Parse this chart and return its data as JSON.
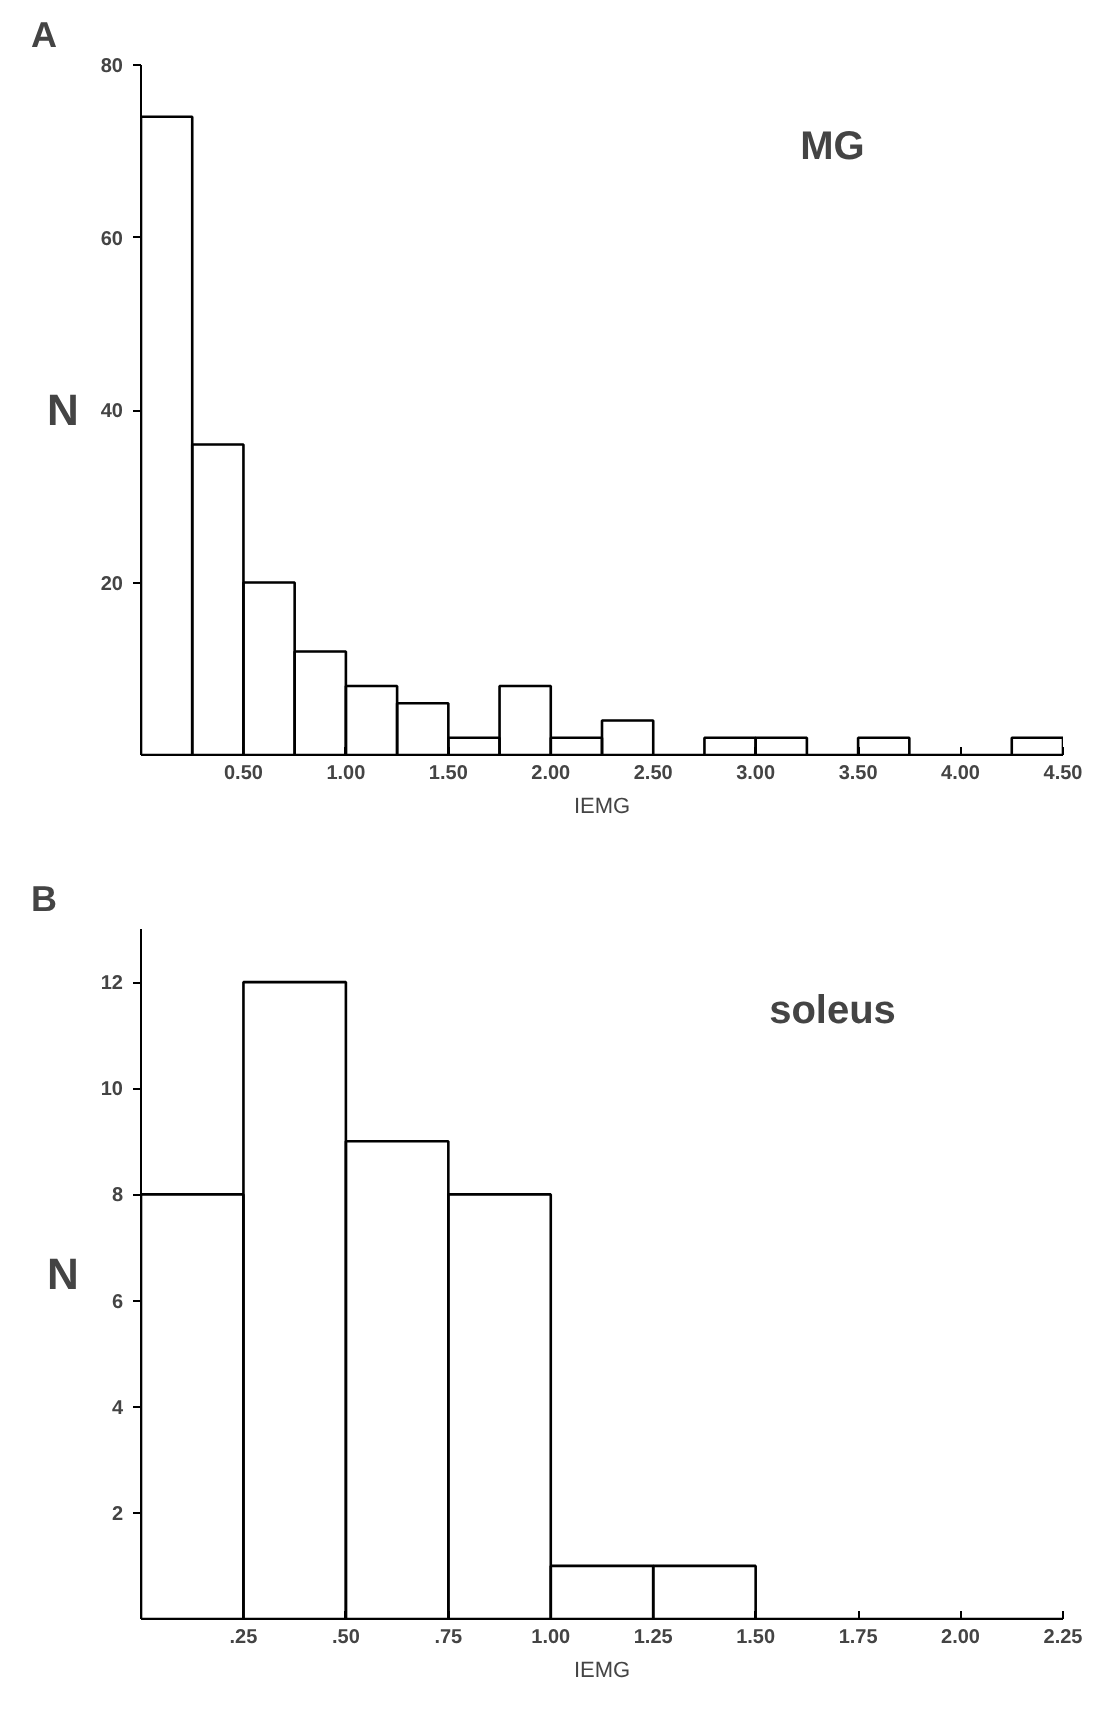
{
  "chart_data": [
    {
      "type": "histogram",
      "title": "MG",
      "xlabel": "IEMG",
      "ylabel": "N",
      "annotations": [
        "A"
      ],
      "bins": [
        0,
        0.25,
        0.5,
        0.75,
        1.0,
        1.25,
        1.5,
        1.75,
        2.0,
        2.25,
        2.5,
        2.75,
        3.0,
        3.25,
        3.5,
        3.75,
        4.0,
        4.25,
        4.5
      ],
      "values": [
        74,
        36,
        20,
        12,
        8,
        6,
        2,
        8,
        2,
        4,
        0,
        2,
        2,
        0,
        2,
        0,
        0,
        2
      ],
      "color": "#000000",
      "xlim": [
        0,
        4.5
      ],
      "xticks": [
        {
          "value": 0.5,
          "label": "0.50"
        },
        {
          "value": 1.0,
          "label": "1.00"
        },
        {
          "value": 1.5,
          "label": "1.50"
        },
        {
          "value": 2.0,
          "label": "2.00"
        },
        {
          "value": 2.5,
          "label": "2.50"
        },
        {
          "value": 3.0,
          "label": "3.00"
        },
        {
          "value": 3.5,
          "label": "3.50"
        },
        {
          "value": 4.0,
          "label": "4.00"
        },
        {
          "value": 4.5,
          "label": "4.50"
        }
      ],
      "ylim": [
        0,
        80
      ],
      "yticks": [
        20,
        40,
        60,
        80
      ],
      "grid": false
    },
    {
      "type": "histogram",
      "title": "soleus",
      "xlabel": "IEMG",
      "ylabel": "N",
      "annotations": [
        "B"
      ],
      "bins": [
        0,
        0.25,
        0.5,
        0.75,
        1.0,
        1.25,
        1.5,
        1.75,
        2.0,
        2.25
      ],
      "values": [
        8,
        12,
        9,
        8,
        1,
        1,
        0,
        0,
        0
      ],
      "color": "#000000",
      "xlim": [
        0,
        2.25
      ],
      "xticks": [
        {
          "value": 0.25,
          "label": ".25"
        },
        {
          "value": 0.5,
          "label": ".50"
        },
        {
          "value": 0.75,
          "label": ".75"
        },
        {
          "value": 1.0,
          "label": "1.00"
        },
        {
          "value": 1.25,
          "label": "1.25"
        },
        {
          "value": 1.5,
          "label": "1.50"
        },
        {
          "value": 1.75,
          "label": "1.75"
        },
        {
          "value": 2.0,
          "label": "2.00"
        },
        {
          "value": 2.25,
          "label": "2.25"
        }
      ],
      "ylim": [
        0,
        13
      ],
      "yticks": [
        2,
        4,
        6,
        8,
        10,
        12
      ],
      "grid": false
    }
  ]
}
